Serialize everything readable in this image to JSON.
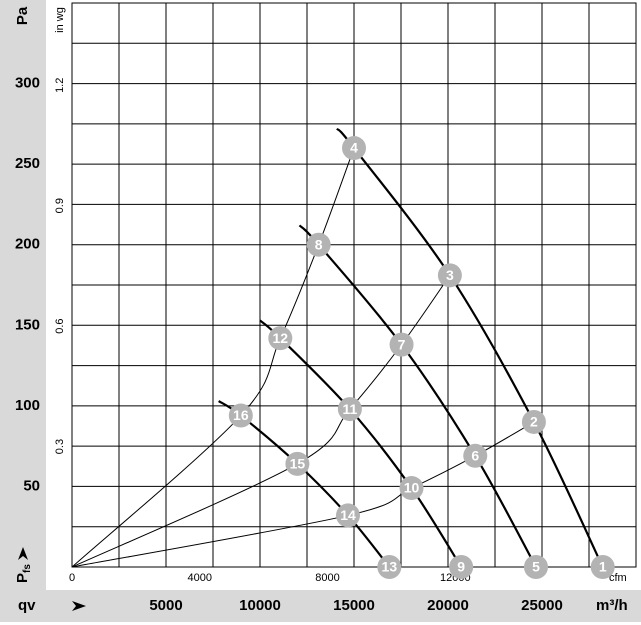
{
  "chart_data": {
    "type": "line",
    "y_unit": "Pa",
    "y_label": "P",
    "y_label_sub": "fs",
    "x_label": "qv",
    "x_unit": "m³/h",
    "y2_unit": "in wg",
    "x2_unit": "cfm",
    "xlim": [
      0,
      30000
    ],
    "ylim": [
      0,
      350
    ],
    "xticks": [
      5000,
      10000,
      15000,
      20000,
      25000
    ],
    "yticks": [
      50,
      100,
      150,
      200,
      250,
      300
    ],
    "xgrid": [
      0,
      2500,
      5000,
      7500,
      10000,
      12500,
      15000,
      17500,
      20000,
      22500,
      25000,
      27500,
      30000
    ],
    "ygrid": [
      0,
      25,
      50,
      75,
      100,
      125,
      150,
      175,
      200,
      225,
      250,
      275,
      300,
      325,
      350
    ],
    "y2lim": [
      0,
      1.405
    ],
    "y2ticks": [
      0.3,
      0.6,
      0.9,
      1.2
    ],
    "x2lim": [
      0,
      17657
    ],
    "x2ticks": [
      0,
      4000,
      8000,
      12000
    ],
    "fan_curves": [
      {
        "x": [
          14090,
          15000,
          20100,
          24570,
          28230
        ],
        "y": [
          272,
          260,
          181,
          90,
          0
        ]
      },
      {
        "x": [
          12100,
          13120,
          17530,
          21450,
          24680
        ],
        "y": [
          212,
          200,
          138,
          69,
          0
        ]
      },
      {
        "x": [
          10000,
          11080,
          14780,
          18060,
          20700
        ],
        "y": [
          153,
          142,
          98,
          49,
          0
        ]
      },
      {
        "x": [
          7800,
          8980,
          11990,
          14680,
          16880
        ],
        "y": [
          103,
          94,
          64,
          32,
          0
        ]
      }
    ],
    "system_curves": [
      {
        "x": [
          0,
          8980,
          11080,
          13120,
          15000
        ],
        "y": [
          0,
          94,
          142,
          200,
          260
        ]
      },
      {
        "x": [
          0,
          11990,
          14780,
          17530,
          20100
        ],
        "y": [
          0,
          64,
          98,
          138,
          181
        ]
      },
      {
        "x": [
          0,
          14680,
          18060,
          21450,
          24570
        ],
        "y": [
          0,
          32,
          49,
          69,
          90
        ]
      }
    ],
    "points": [
      {
        "label": "1",
        "x": 28230,
        "y": 0
      },
      {
        "label": "2",
        "x": 24570,
        "y": 90
      },
      {
        "label": "3",
        "x": 20100,
        "y": 181
      },
      {
        "label": "4",
        "x": 15000,
        "y": 260
      },
      {
        "label": "5",
        "x": 24680,
        "y": 0
      },
      {
        "label": "6",
        "x": 21450,
        "y": 69
      },
      {
        "label": "7",
        "x": 17530,
        "y": 138
      },
      {
        "label": "8",
        "x": 13120,
        "y": 200
      },
      {
        "label": "9",
        "x": 20700,
        "y": 0
      },
      {
        "label": "10",
        "x": 18060,
        "y": 49
      },
      {
        "label": "11",
        "x": 14780,
        "y": 98
      },
      {
        "label": "12",
        "x": 11080,
        "y": 142
      },
      {
        "label": "13",
        "x": 16880,
        "y": 0
      },
      {
        "label": "14",
        "x": 14680,
        "y": 32
      },
      {
        "label": "15",
        "x": 11990,
        "y": 64
      },
      {
        "label": "16",
        "x": 8980,
        "y": 94
      }
    ]
  }
}
